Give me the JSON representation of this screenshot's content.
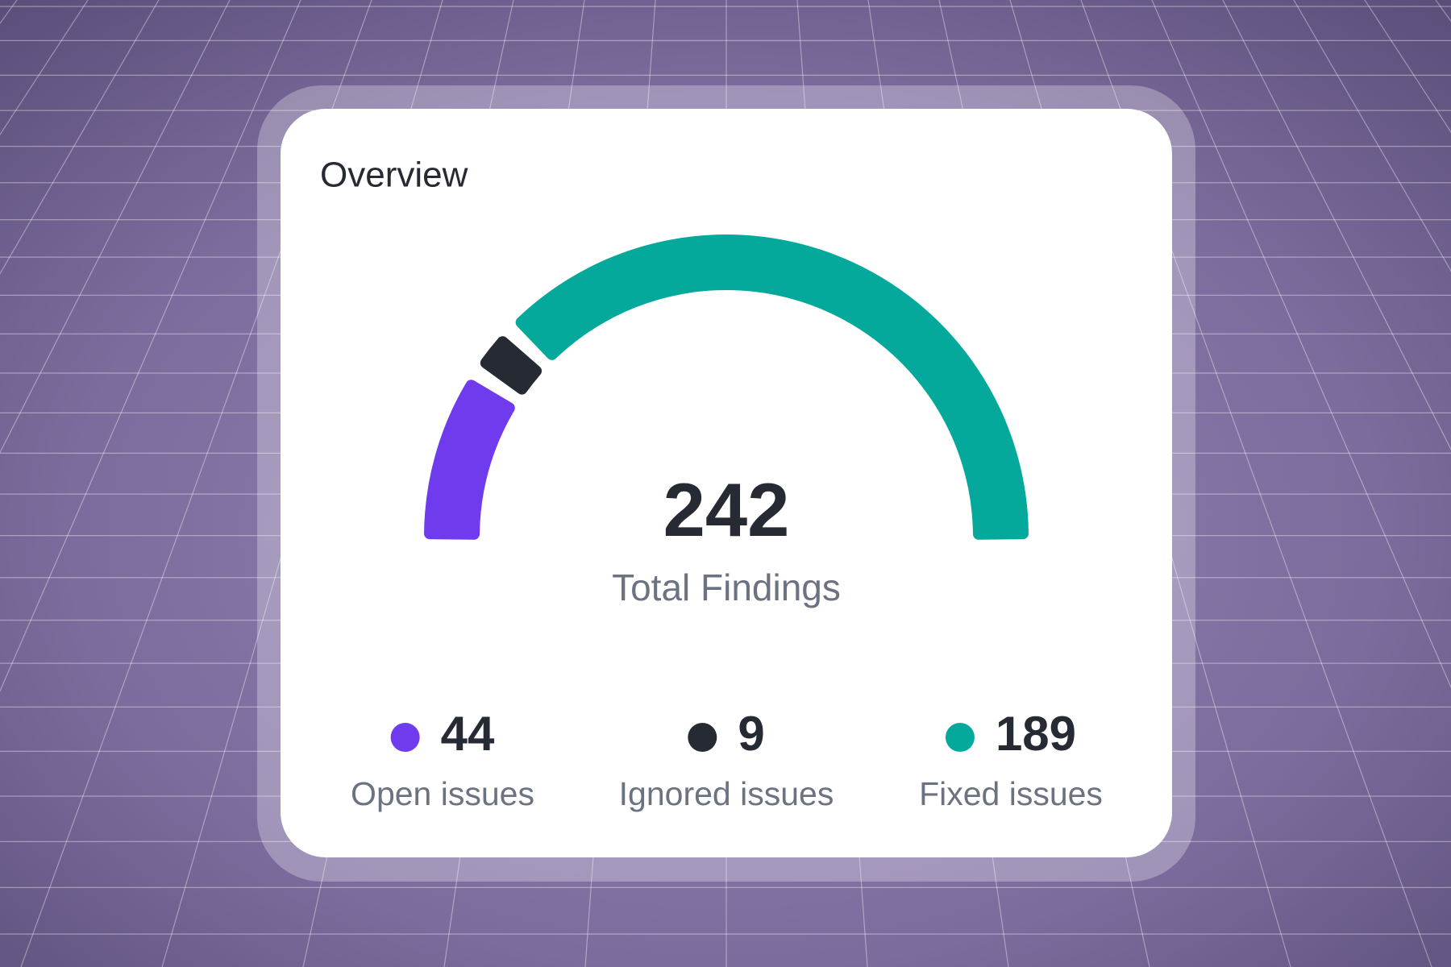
{
  "chart_data": {
    "type": "gauge",
    "title": "Overview",
    "total": 242,
    "total_label": "Total Findings",
    "categories": [
      "Open issues",
      "Ignored issues",
      "Fixed issues"
    ],
    "values": [
      44,
      9,
      189
    ],
    "colors": [
      "#6f3bec",
      "#262a33",
      "#05a99b"
    ]
  }
}
